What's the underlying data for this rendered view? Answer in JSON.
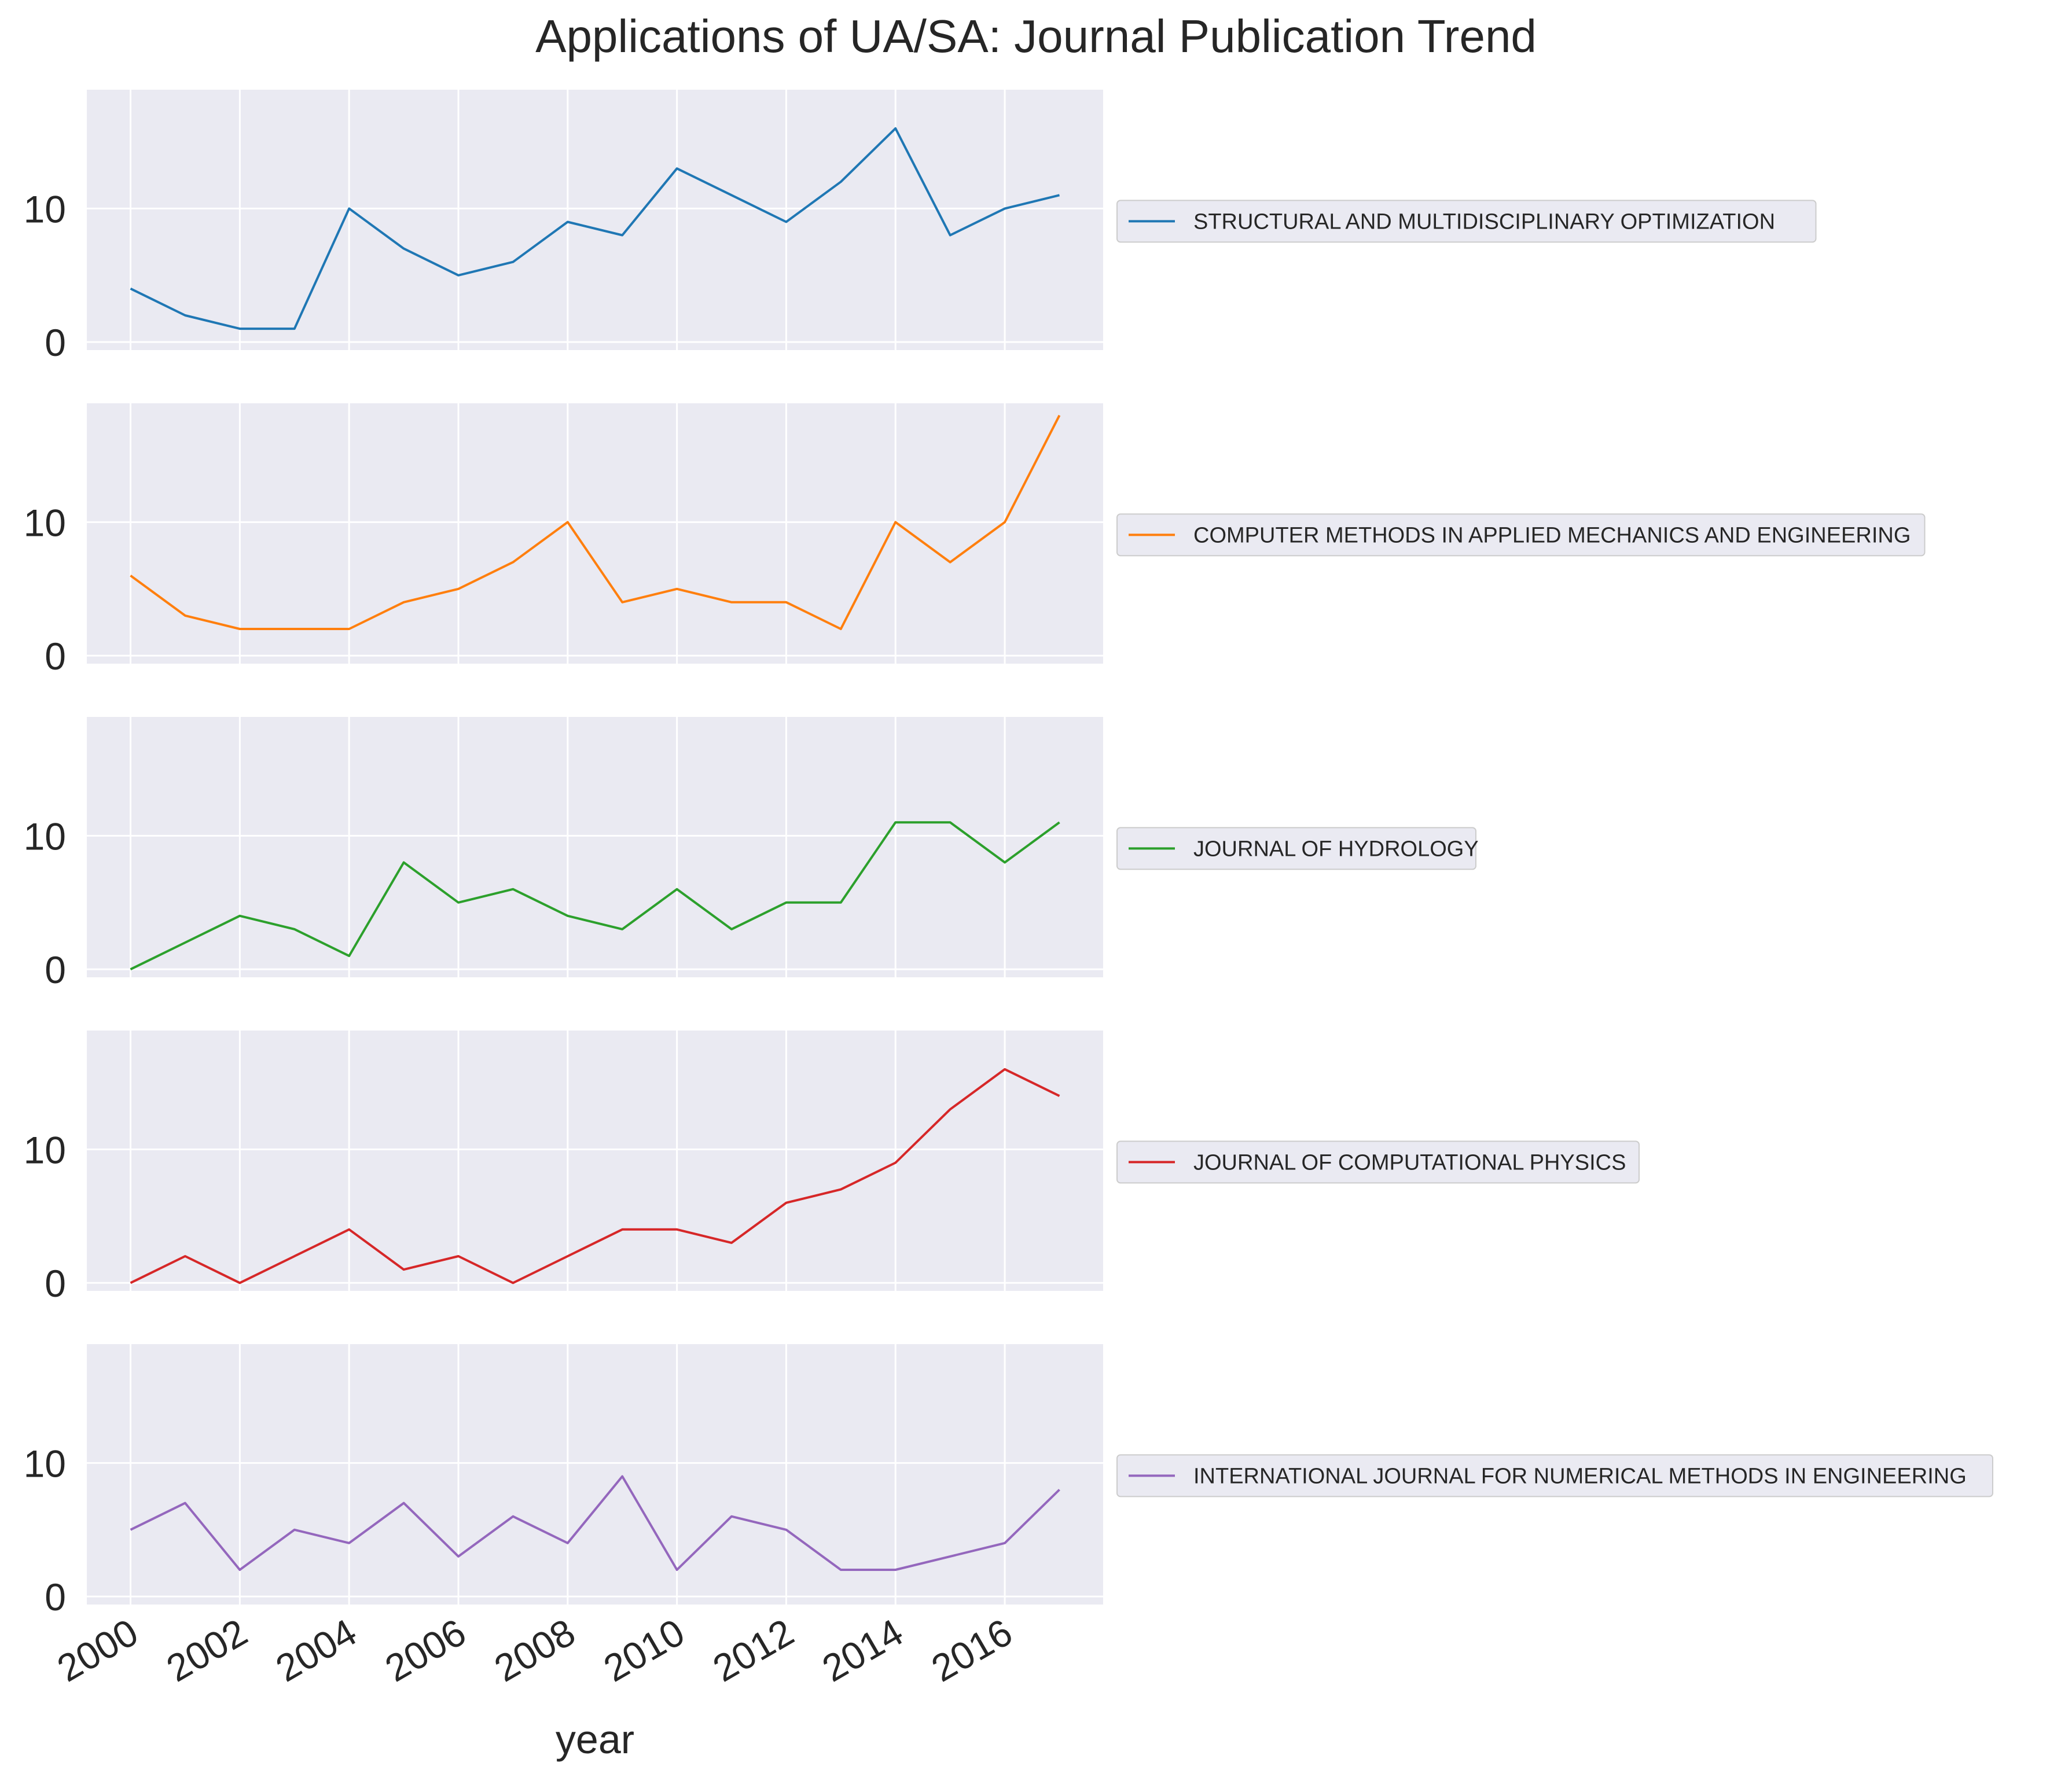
{
  "chart_data": {
    "type": "line",
    "title": "Applications of UA/SA: Journal Publication Trend",
    "xlabel": "year",
    "ylabel": "",
    "x": [
      2000,
      2001,
      2002,
      2003,
      2004,
      2005,
      2006,
      2007,
      2008,
      2009,
      2010,
      2011,
      2012,
      2013,
      2014,
      2015,
      2016,
      2017
    ],
    "x_ticks": [
      "2000",
      "2002",
      "2004",
      "2006",
      "2008",
      "2010",
      "2012",
      "2014",
      "2016"
    ],
    "xlim": [
      1999.2,
      2017.8
    ],
    "ylim": [
      -0.6,
      18.9
    ],
    "y_ticks": [
      "0",
      "10"
    ],
    "grid": true,
    "shared_x": true,
    "legend_placement": "right of each panel",
    "background_color": "#eaeaf2",
    "series": [
      {
        "name": "STRUCTURAL AND MULTIDISCIPLINARY OPTIMIZATION",
        "color": "#1f77b4",
        "values": [
          4,
          2,
          1,
          1,
          10,
          7,
          5,
          6,
          9,
          8,
          13,
          11,
          9,
          12,
          16,
          8,
          10,
          11
        ]
      },
      {
        "name": "COMPUTER METHODS IN APPLIED MECHANICS AND ENGINEERING",
        "color": "#ff7f0e",
        "values": [
          6,
          3,
          2,
          2,
          2,
          4,
          5,
          7,
          10,
          4,
          5,
          4,
          4,
          2,
          10,
          7,
          10,
          18
        ]
      },
      {
        "name": "JOURNAL OF HYDROLOGY",
        "color": "#2ca02c",
        "values": [
          0,
          2,
          4,
          3,
          1,
          8,
          5,
          6,
          4,
          3,
          6,
          3,
          5,
          5,
          11,
          11,
          8,
          11
        ]
      },
      {
        "name": "JOURNAL OF COMPUTATIONAL PHYSICS",
        "color": "#d62728",
        "values": [
          0,
          2,
          0,
          2,
          4,
          1,
          2,
          0,
          2,
          4,
          4,
          3,
          6,
          7,
          9,
          13,
          16,
          14
        ]
      },
      {
        "name": "INTERNATIONAL JOURNAL FOR NUMERICAL METHODS IN ENGINEERING",
        "color": "#9467bd",
        "values": [
          5,
          7,
          2,
          5,
          4,
          7,
          3,
          6,
          4,
          9,
          2,
          6,
          5,
          2,
          2,
          3,
          4,
          8
        ]
      }
    ]
  }
}
